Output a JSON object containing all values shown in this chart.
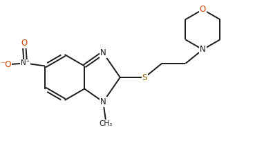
{
  "bg_color": "#ffffff",
  "bond_color": "#1a1a1a",
  "N_color": "#1a1a1a",
  "O_color": "#cc4400",
  "S_color": "#8B6000",
  "lw": 1.4,
  "fs": 8.5,
  "xlim": [
    0,
    9.5
  ],
  "ylim": [
    0,
    5.2
  ]
}
